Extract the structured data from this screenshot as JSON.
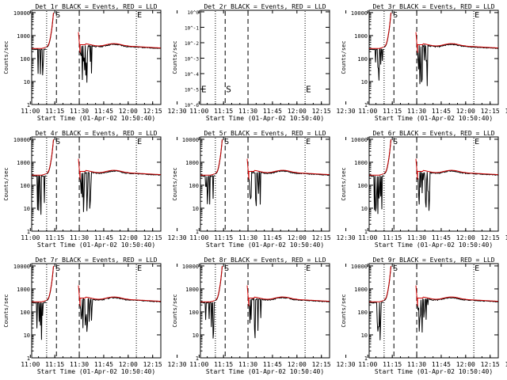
{
  "xlabel": "Start Time (01-Apr-02 10:50:40)",
  "ylabel": "Counts/sec",
  "x_ticks": [
    "11:00",
    "11:15",
    "11:30",
    "11:45",
    "12:00",
    "12:15",
    "12:30"
  ],
  "x_range_minutes": [
    10.83,
    90
  ],
  "series_colors": {
    "events": "#000000",
    "lld": "#cc0000"
  },
  "standard_panel": {
    "y_ticks": [
      "1",
      "10",
      "100",
      "1000",
      "10000"
    ],
    "y_range_log10": [
      0,
      4.1
    ]
  },
  "panel_2r": {
    "y_ticks": [
      "10^0",
      "10^-1",
      "10^-2",
      "10^-3",
      "10^-4",
      "10^-5",
      "10^-6"
    ],
    "y_range_log10": [
      -6,
      0.1
    ],
    "markers": [
      {
        "label": "E",
        "x": 10.83
      },
      {
        "label": "S",
        "x": 26
      },
      {
        "label": "E",
        "x": 75
      }
    ]
  },
  "markers_standard": [
    {
      "label": "S",
      "x": 25
    },
    {
      "label": "E",
      "x": 75
    }
  ],
  "vlines": [
    {
      "x": 20,
      "style": "dotted"
    },
    {
      "x": 26,
      "style": "dashed"
    },
    {
      "x": 40,
      "style": "dashed"
    },
    {
      "x": 75,
      "style": "dotted"
    }
  ],
  "chart_data": [
    {
      "type": "line",
      "title": "Det 1r BLACK = Events, RED = LLD",
      "yscale": "log",
      "ylim": [
        1,
        12000
      ],
      "series": [
        {
          "name": "Events"
        },
        {
          "name": "LLD"
        }
      ]
    },
    {
      "type": "line",
      "title": "Det 2r BLACK = Events, RED = LLD",
      "yscale": "log",
      "ylim": [
        1e-06,
        1
      ],
      "series": []
    },
    {
      "type": "line",
      "title": "Det 3r BLACK = Events, RED = LLD",
      "yscale": "log",
      "ylim": [
        1,
        12000
      ],
      "series": [
        {
          "name": "Events"
        },
        {
          "name": "LLD"
        }
      ]
    },
    {
      "type": "line",
      "title": "Det 4r BLACK = Events, RED = LLD",
      "yscale": "log",
      "ylim": [
        1,
        12000
      ],
      "series": [
        {
          "name": "Events"
        },
        {
          "name": "LLD"
        }
      ]
    },
    {
      "type": "line",
      "title": "Det 5r BLACK = Events, RED = LLD",
      "yscale": "log",
      "ylim": [
        1,
        12000
      ],
      "series": [
        {
          "name": "Events"
        },
        {
          "name": "LLD"
        }
      ]
    },
    {
      "type": "line",
      "title": "Det 6r BLACK = Events, RED = LLD",
      "yscale": "log",
      "ylim": [
        1,
        12000
      ],
      "series": [
        {
          "name": "Events"
        },
        {
          "name": "LLD"
        }
      ]
    },
    {
      "type": "line",
      "title": "Det 7r BLACK = Events, RED = LLD",
      "yscale": "log",
      "ylim": [
        1,
        12000
      ],
      "series": [
        {
          "name": "Events"
        },
        {
          "name": "LLD"
        }
      ]
    },
    {
      "type": "line",
      "title": "Det 8r BLACK = Events, RED = LLD",
      "yscale": "log",
      "ylim": [
        1,
        12000
      ],
      "series": [
        {
          "name": "Events"
        },
        {
          "name": "LLD"
        }
      ]
    },
    {
      "type": "line",
      "title": "Det 9r BLACK = Events, RED = LLD",
      "yscale": "log",
      "ylim": [
        1,
        12000
      ],
      "series": [
        {
          "name": "Events"
        },
        {
          "name": "LLD"
        }
      ]
    }
  ]
}
